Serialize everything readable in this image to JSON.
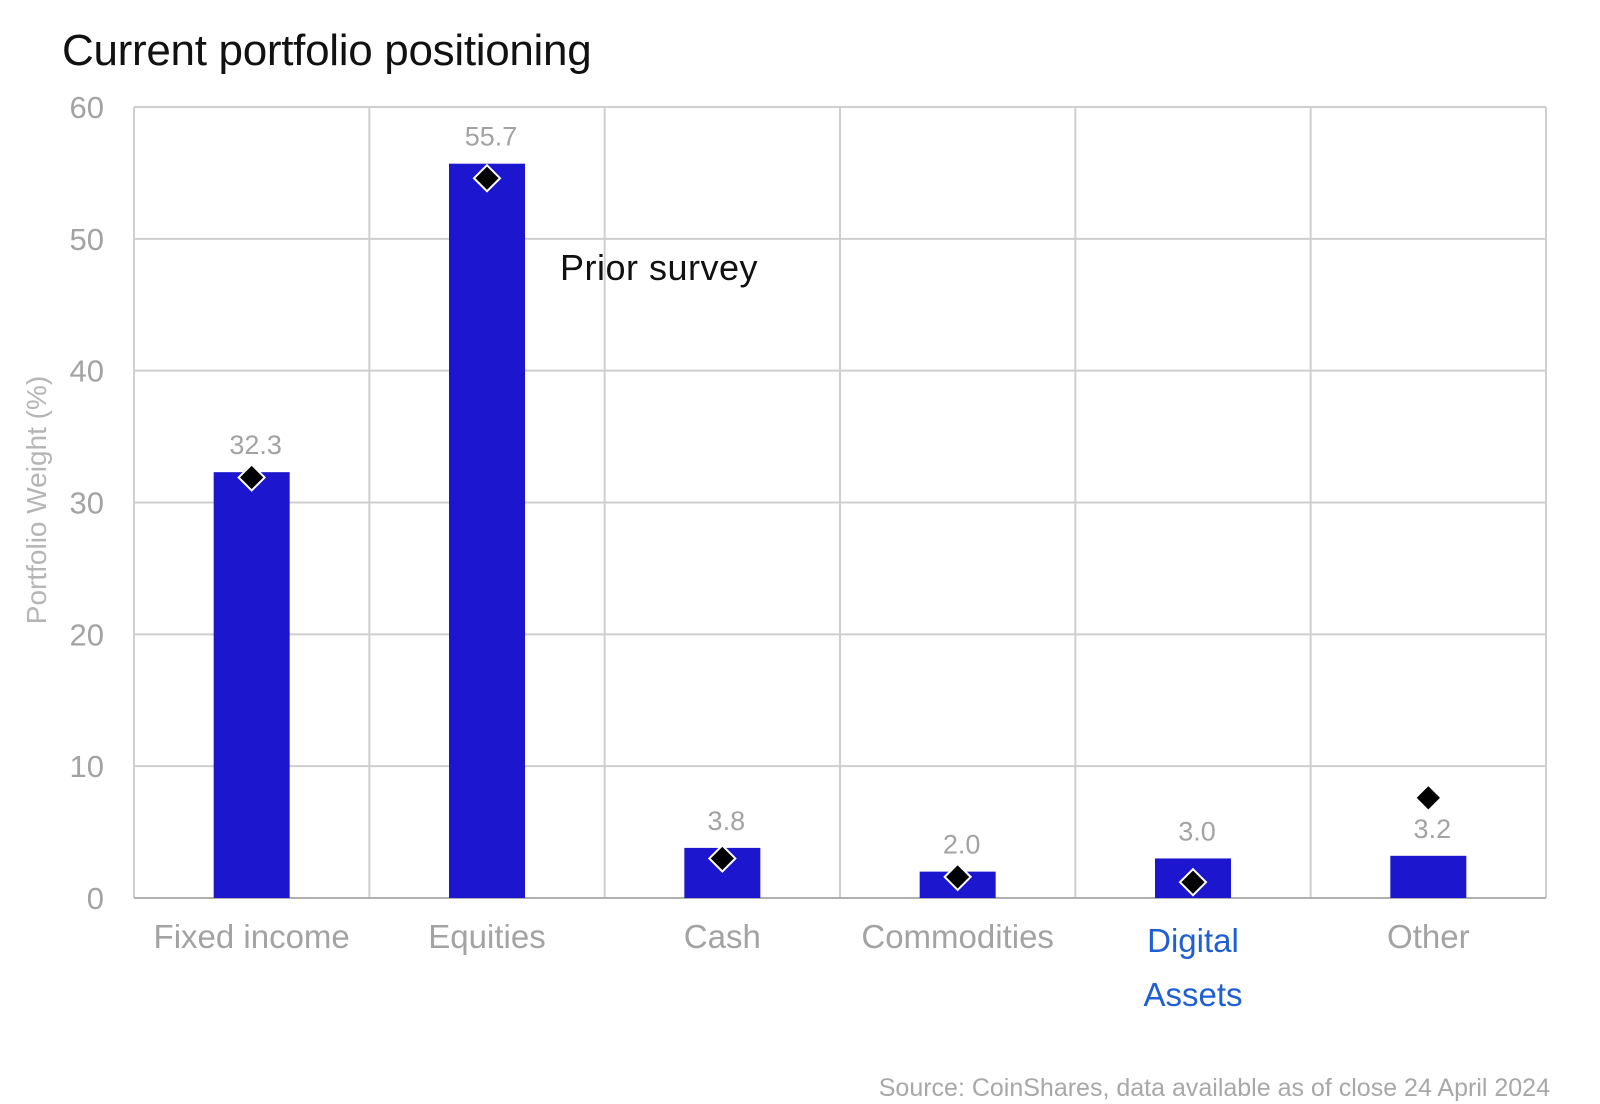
{
  "chart_data": {
    "type": "bar",
    "title": "Current portfolio positioning",
    "ylabel": "Portfolio Weight (%)",
    "xlabel": "",
    "ylim": [
      0,
      60
    ],
    "yticks": [
      0,
      10,
      20,
      30,
      40,
      50,
      60
    ],
    "grid": true,
    "categories": [
      "Fixed income",
      "Equities",
      "Cash",
      "Commodities",
      "Digital Assets",
      "Other"
    ],
    "series": [
      {
        "values": [
          32.3,
          55.7,
          3.8,
          2.0,
          3.0,
          3.2
        ],
        "color": "#1c16cf",
        "marker": "bar"
      },
      {
        "name": "Prior survey",
        "values": [
          31.9,
          54.6,
          3.0,
          1.6,
          1.2,
          7.6
        ],
        "color": "#000000",
        "marker": "diamond"
      }
    ],
    "data_labels": [
      "32.3",
      "55.7",
      "3.8",
      "2.0",
      "3.0",
      "3.2"
    ],
    "annotation": "Prior survey",
    "highlight_category": "Digital Assets",
    "highlight_color": "#1f5fd1",
    "source": "Source: CoinShares, data available as of close 24 April 2024"
  }
}
